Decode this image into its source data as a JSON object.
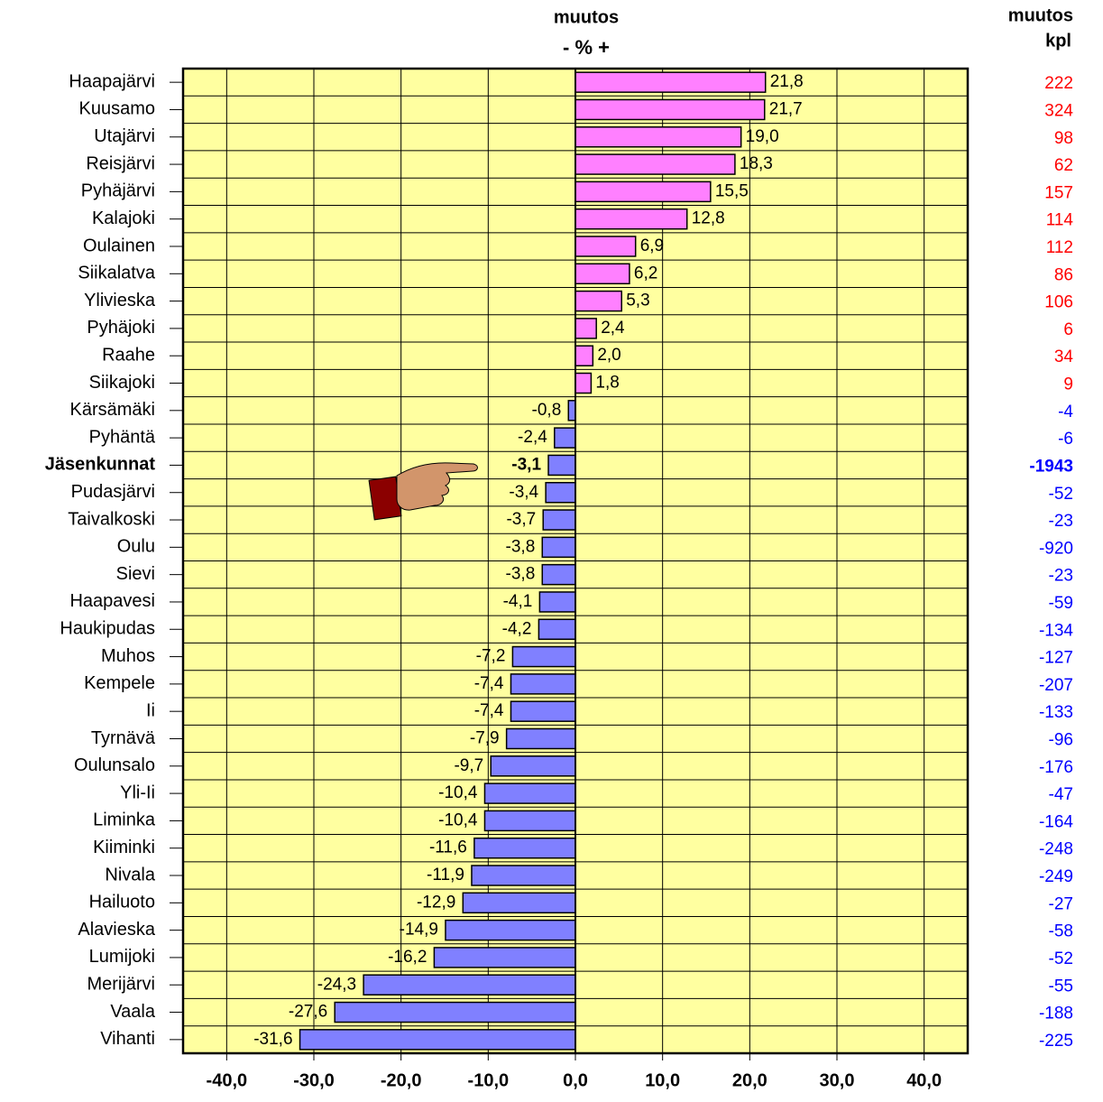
{
  "chart_data": {
    "type": "barh",
    "header": [
      "muutos",
      "- % +"
    ],
    "categories": [
      "Haapajärvi",
      "Kuusamo",
      "Utajärvi",
      "Reisjärvi",
      "Pyhäjärvi",
      "Kalajoki",
      "Oulainen",
      "Siikalatva",
      "Ylivieska",
      "Pyhäjoki",
      "Raahe",
      "Siikajoki",
      "Kärsämäki",
      "Pyhäntä",
      "Jäsenkunnat",
      "Pudasjärvi",
      "Taivalkoski",
      "Oulu",
      "Sievi",
      "Haapavesi",
      "Haukipudas",
      "Muhos",
      "Kempele",
      "Ii",
      "Tyrnävä",
      "Oulunsalo",
      "Yli-Ii",
      "Liminka",
      "Kiiminki",
      "Nivala",
      "Hailuoto",
      "Alavieska",
      "Lumijoki",
      "Merijärvi",
      "Vaala",
      "Vihanti"
    ],
    "values": [
      21.8,
      21.7,
      19.0,
      18.3,
      15.5,
      12.8,
      6.9,
      6.2,
      5.3,
      2.4,
      2.0,
      1.8,
      -0.8,
      -2.4,
      -3.1,
      -3.4,
      -3.7,
      -3.8,
      -3.8,
      -4.1,
      -4.2,
      -7.2,
      -7.4,
      -7.4,
      -7.9,
      -9.7,
      -10.4,
      -10.4,
      -11.6,
      -11.9,
      -12.9,
      -14.9,
      -16.2,
      -24.3,
      -27.6,
      -31.6
    ],
    "value_labels": [
      "21,8",
      "21,7",
      "19,0",
      "18,3",
      "15,5",
      "12,8",
      "6,9",
      "6,2",
      "5,3",
      "2,4",
      "2,0",
      "1,8",
      "-0,8",
      "-2,4",
      "-3,1",
      "-3,4",
      "-3,7",
      "-3,8",
      "-3,8",
      "-4,1",
      "-4,2",
      "-7,2",
      "-7,4",
      "-7,4",
      "-7,9",
      "-9,7",
      "-10,4",
      "-10,4",
      "-11,6",
      "-11,9",
      "-12,9",
      "-14,9",
      "-16,2",
      "-24,3",
      "-27,6",
      "-31,6"
    ],
    "colors": {
      "positive": "#ff80ff",
      "negative": "#8080ff"
    },
    "highlight_index": 14,
    "xlim": [
      -45,
      45
    ],
    "xticks": [
      {
        "value": -40,
        "label": "-40,0"
      },
      {
        "value": -30,
        "label": "-30,0"
      },
      {
        "value": -20,
        "label": "-20,0"
      },
      {
        "value": -10,
        "label": "-10,0"
      },
      {
        "value": 0,
        "label": "0,0"
      },
      {
        "value": 10,
        "label": "10,0"
      },
      {
        "value": 20,
        "label": "20,0"
      },
      {
        "value": 30,
        "label": "30,0"
      },
      {
        "value": 40,
        "label": "40,0"
      }
    ],
    "grid": true,
    "counts": {
      "title": [
        "muutos",
        "kpl"
      ],
      "positive_color": "#ff0000",
      "negative_color": "#0000ff",
      "values": [
        222,
        324,
        98,
        62,
        157,
        114,
        112,
        86,
        106,
        6,
        34,
        9,
        -4,
        -6,
        -1943,
        -52,
        -23,
        -920,
        -23,
        -59,
        -134,
        -127,
        -207,
        -133,
        -96,
        -176,
        -47,
        -164,
        -248,
        -249,
        -27,
        -58,
        -52,
        -55,
        -188,
        -225
      ]
    }
  }
}
